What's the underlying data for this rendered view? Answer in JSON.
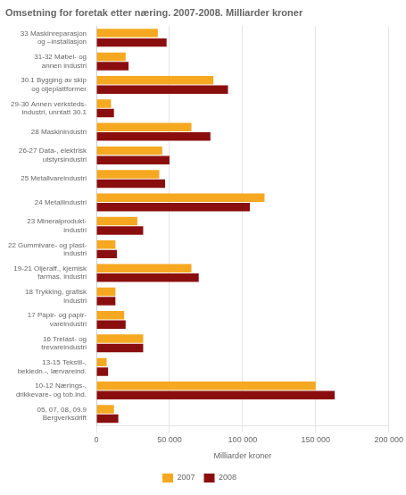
{
  "chart_data": {
    "type": "bar",
    "orientation": "horizontal",
    "title": "Omsetning for foretak etter næring. 2007-2008. Milliarder kroner",
    "categories": [
      "33 Maskinreparasjon\nog –installasjon",
      "31-32 Møbel- og\nannen industri",
      "30.1 Bygging av skip\nog oljeplattformer",
      "29-30 Annen verksteds-\nindustri, unntatt 30.1",
      "28 Maskinindustri",
      "26-27 Data-, elektrisk\nutstyrsindustri",
      "25 Metallvareindustri",
      "24 Metallindustri",
      "23 Mineralprodukt-\nindustri",
      "22 Gummivare- og plast-\nindustri",
      "19-21 Oljeraff., kjemisk\nfarmas. industri",
      "18 Trykking, grafisk\nindustri",
      "17 Papir- og papir-\nvareindustri",
      "16 Trelast- og\ntrevareindustri",
      "13-15 Tekstil-,\nbekledn.-, lærvareind.",
      "10-12 Nærings-,\ndrikkevare- og tob.ind.",
      "05, 07, 08, 09.9\nBergverksdrift"
    ],
    "series": [
      {
        "name": "2007",
        "color": "#F5A820",
        "values": [
          42000,
          20000,
          80000,
          10000,
          65000,
          45000,
          43000,
          115000,
          28000,
          13000,
          65000,
          13000,
          19000,
          32000,
          7000,
          150000,
          12000
        ]
      },
      {
        "name": "2008",
        "color": "#8B0E0E",
        "values": [
          48000,
          22000,
          90000,
          12000,
          78000,
          50000,
          47000,
          105000,
          32000,
          14000,
          70000,
          13000,
          20000,
          32000,
          8000,
          163000,
          15000
        ]
      }
    ],
    "xlabel": "Milliarder kroner",
    "xlim": [
      0,
      200000
    ],
    "xticks": [
      0,
      {
        "value": 50000,
        "label": "50 000"
      },
      {
        "value": 100000,
        "label": "100 000"
      },
      {
        "value": 150000,
        "label": "150 000"
      },
      {
        "value": 200000,
        "label": "200 000"
      }
    ],
    "grid": true,
    "legend": "bottom"
  }
}
